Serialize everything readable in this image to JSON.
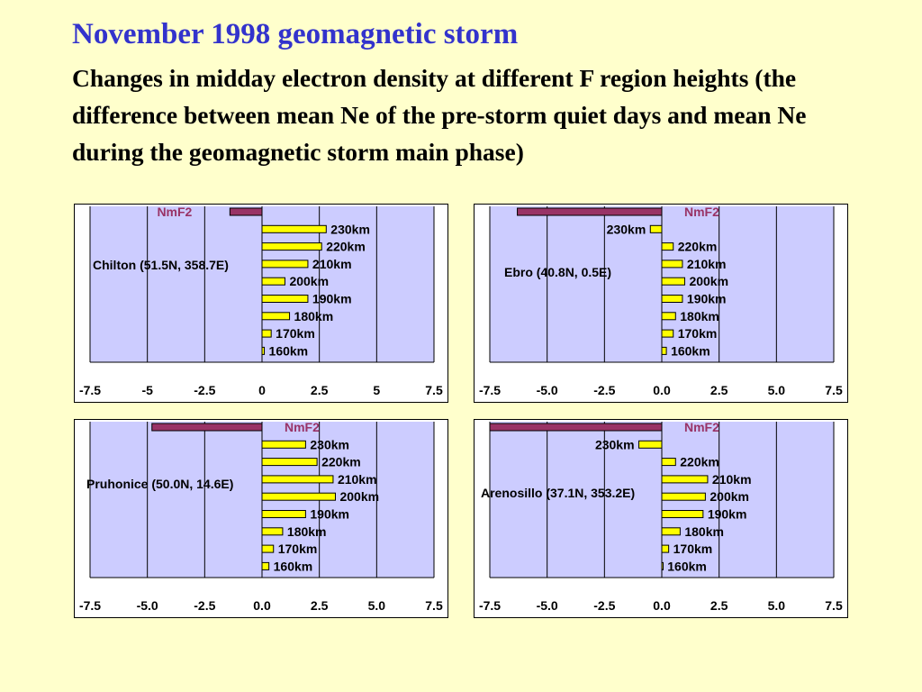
{
  "slide": {
    "title": "November 1998 geomagnetic storm",
    "subtitle": "Changes in midday electron density at different F region heights (the difference between mean Ne of the pre-storm quiet days and mean Ne during the geomagnetic storm main phase)"
  },
  "colors": {
    "background": "#ffffcc",
    "title": "#3333cc",
    "plot_area": "#ccccff",
    "height_bars": "#ffff00",
    "nmf2_bar": "#993366"
  },
  "chart_data": [
    {
      "type": "bar",
      "orientation": "horizontal",
      "station": "Chilton (51.5N, 358.7E)",
      "categories": [
        "NmF2",
        "230km",
        "220km",
        "210km",
        "200km",
        "190km",
        "180km",
        "170km",
        "160km"
      ],
      "values": [
        -1.4,
        2.8,
        2.6,
        2.0,
        1.0,
        2.0,
        1.2,
        0.4,
        0.1
      ],
      "xlim": [
        -7.5,
        7.5
      ],
      "xticks": [
        "-7.5",
        "-5",
        "-2.5",
        "0",
        "2.5",
        "5",
        "7.5"
      ],
      "grid": "vertical"
    },
    {
      "type": "bar",
      "orientation": "horizontal",
      "station": "Ebro (40.8N, 0.5E)",
      "categories": [
        "NmF2",
        "230km",
        "220km",
        "210km",
        "200km",
        "190km",
        "180km",
        "170km",
        "160km"
      ],
      "values": [
        -6.3,
        -0.5,
        0.5,
        0.9,
        1.0,
        0.9,
        0.6,
        0.5,
        0.2
      ],
      "xlim": [
        -7.5,
        7.5
      ],
      "xticks": [
        "-7.5",
        "-5.0",
        "-2.5",
        "0.0",
        "2.5",
        "5.0",
        "7.5"
      ],
      "grid": "vertical"
    },
    {
      "type": "bar",
      "orientation": "horizontal",
      "station": "Pruhonice (50.0N, 14.6E)",
      "categories": [
        "NmF2",
        "230km",
        "220km",
        "210km",
        "200km",
        "190km",
        "180km",
        "170km",
        "160km"
      ],
      "values": [
        -4.8,
        1.9,
        2.4,
        3.1,
        3.2,
        1.9,
        0.9,
        0.5,
        0.3
      ],
      "xlim": [
        -7.5,
        7.5
      ],
      "xticks": [
        "-7.5",
        "-5.0",
        "-2.5",
        "0.0",
        "2.5",
        "5.0",
        "7.5"
      ],
      "grid": "vertical"
    },
    {
      "type": "bar",
      "orientation": "horizontal",
      "station": "Arenosillo (37.1N, 353.2E)",
      "categories": [
        "NmF2",
        "230km",
        "220km",
        "210km",
        "200km",
        "190km",
        "180km",
        "170km",
        "160km"
      ],
      "values": [
        -7.5,
        -1.0,
        0.6,
        2.0,
        1.9,
        1.8,
        0.8,
        0.3,
        0.05
      ],
      "xlim": [
        -7.5,
        7.5
      ],
      "xticks": [
        "-7.5",
        "-5.0",
        "-2.5",
        "0.0",
        "2.5",
        "5.0",
        "7.5"
      ],
      "grid": "vertical"
    }
  ]
}
